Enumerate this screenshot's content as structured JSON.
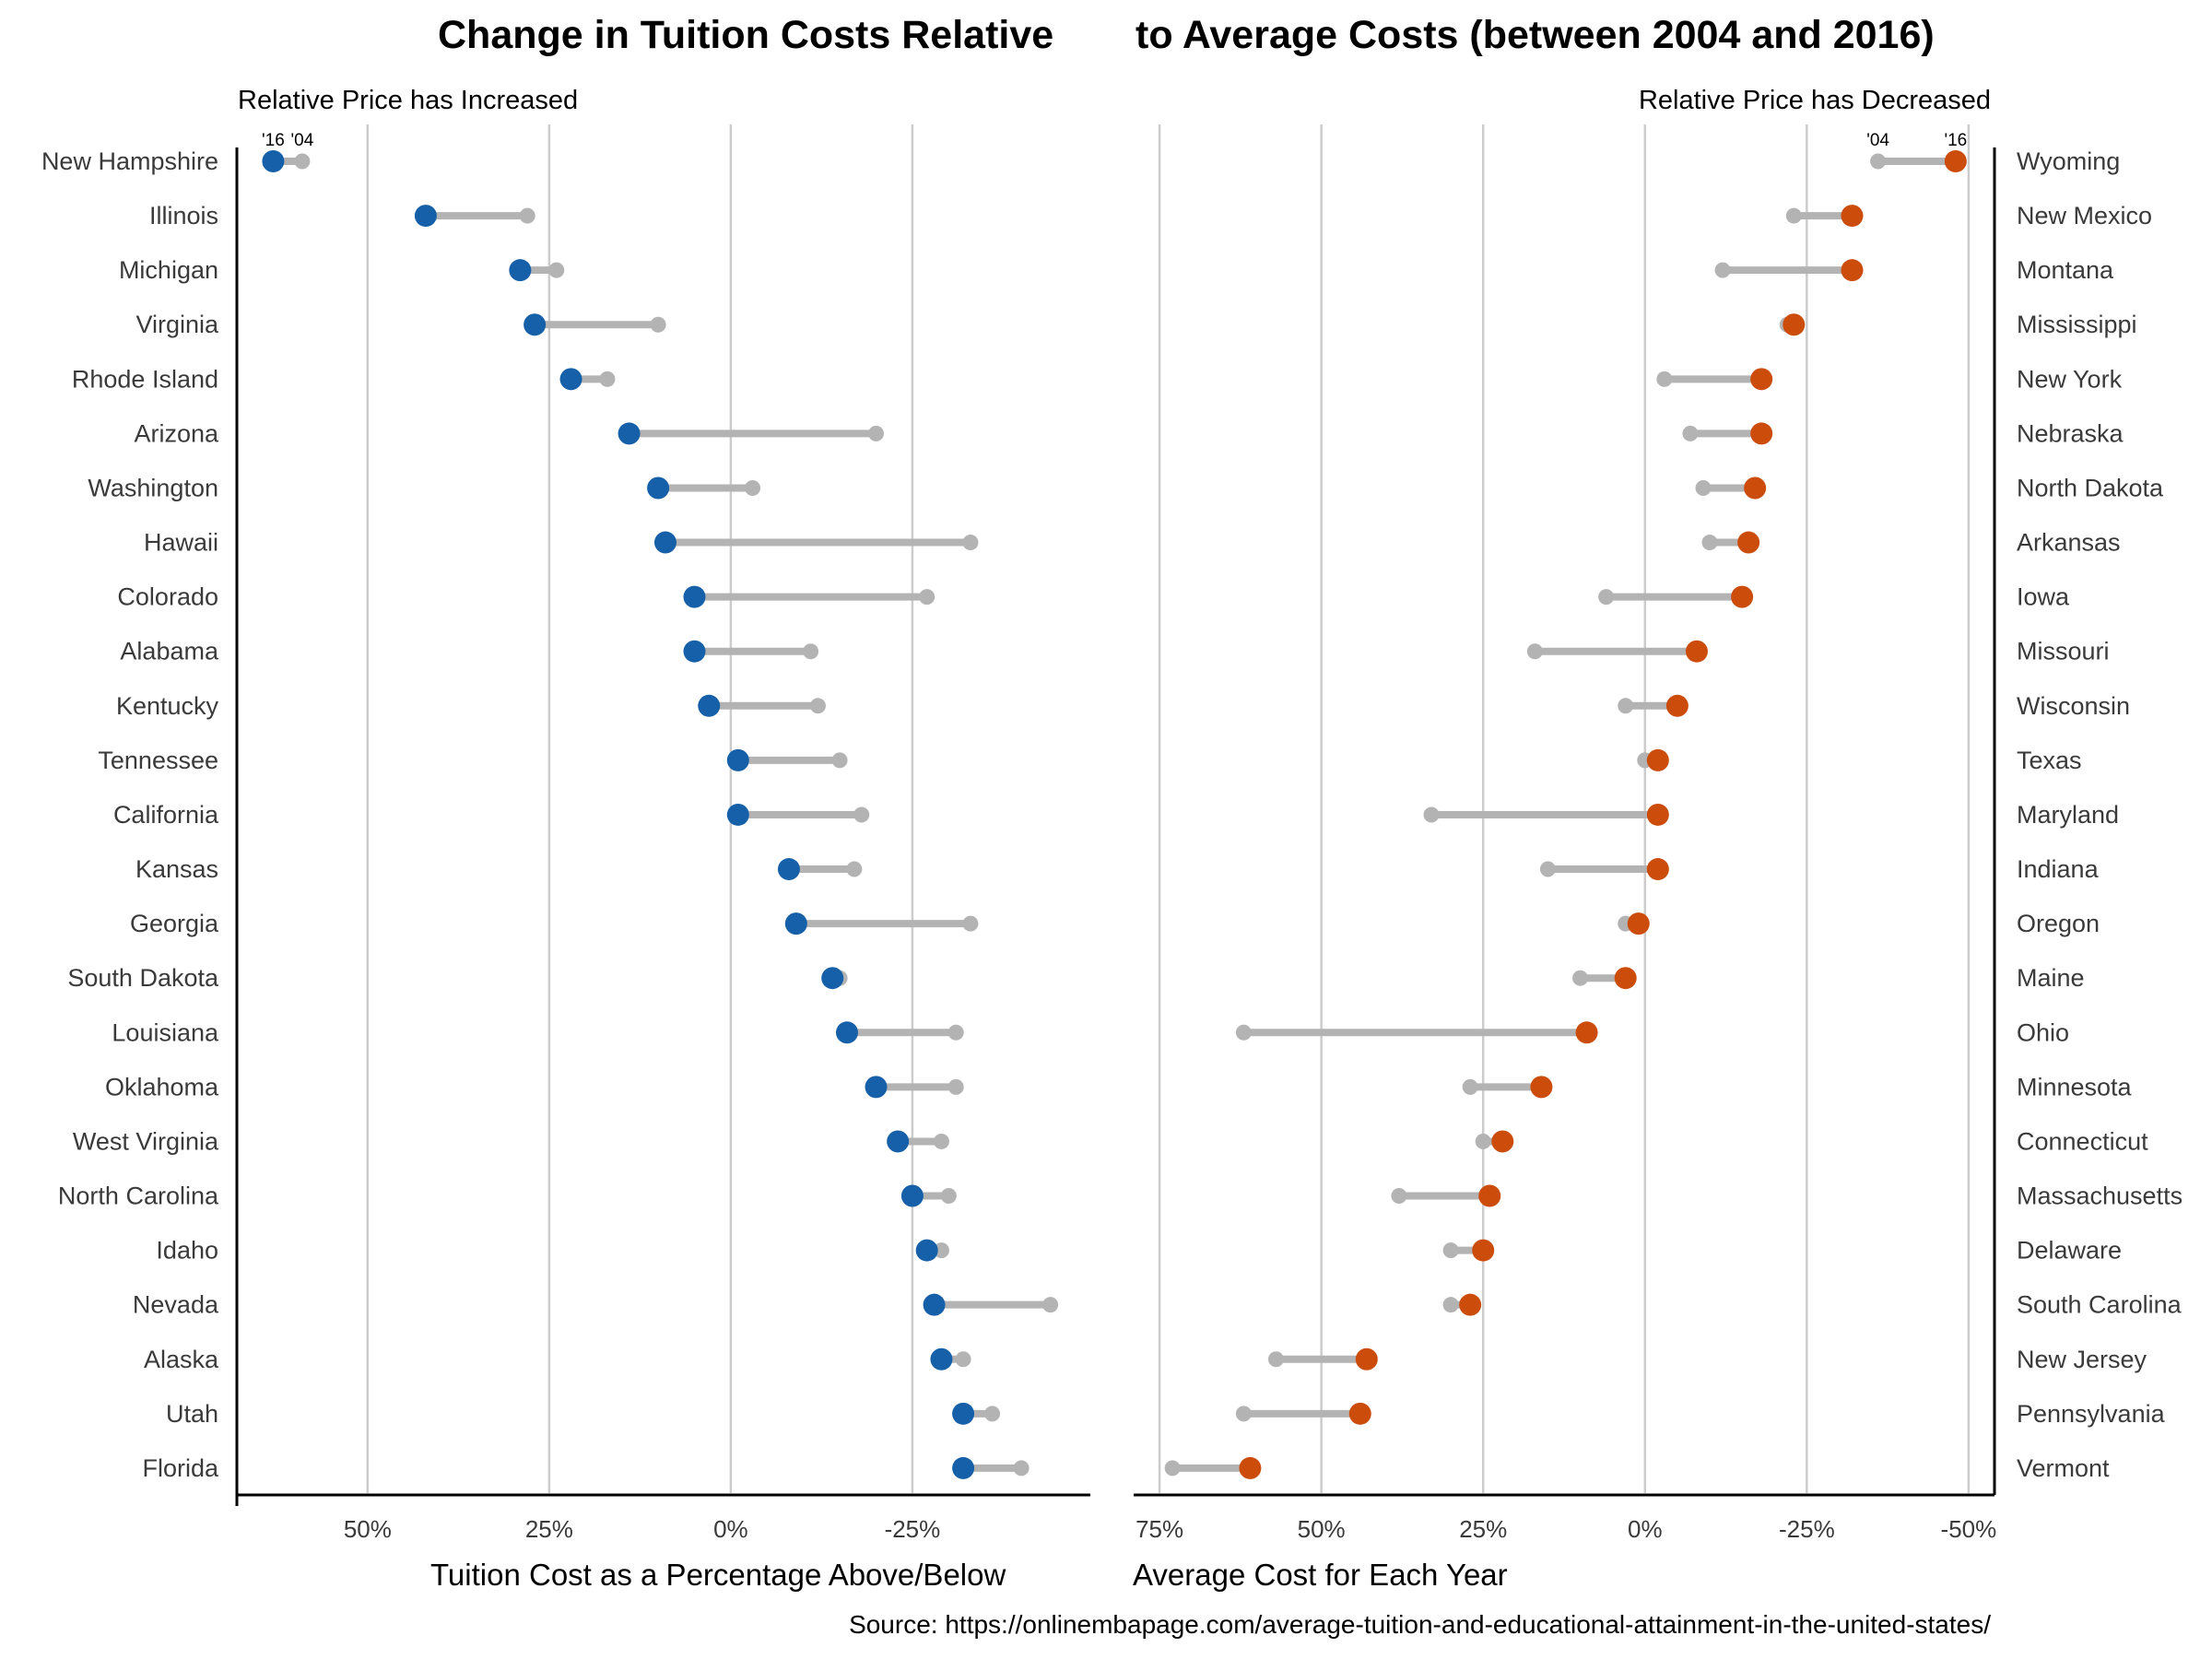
{
  "title_part1": "Change in Tuition Costs Relative",
  "title_part2": "to Average Costs (between 2004 and 2016)",
  "source": "Source: https://onlinembapage.com/average-tuition-and-educational-attainment-in-the-united-states/",
  "colors": {
    "increased": "#1560a8",
    "decreased": "#cc4c0c",
    "start": "#b3b3b3",
    "grid": "#cccccc"
  },
  "chart_data": [
    {
      "type": "dumbbell",
      "subtitle": "Relative Price has Increased",
      "xlabel": "Tuition Cost as a Percentage Above/Below",
      "x_reversed": true,
      "xlim": [
        68,
        -49.5
      ],
      "xticks": [
        50,
        25,
        0,
        -25
      ],
      "tick_labels": [
        "50%",
        "25%",
        "0%",
        "-25%"
      ],
      "label_2004": "'04",
      "label_2016": "'16",
      "categories": [
        "New Hampshire",
        "Illinois",
        "Michigan",
        "Virginia",
        "Rhode Island",
        "Arizona",
        "Washington",
        "Hawaii",
        "Colorado",
        "Alabama",
        "Kentucky",
        "Tennessee",
        "California",
        "Kansas",
        "Georgia",
        "South Dakota",
        "Louisiana",
        "Oklahoma",
        "West Virginia",
        "North Carolina",
        "Idaho",
        "Nevada",
        "Alaska",
        "Utah",
        "Florida"
      ],
      "series": [
        {
          "name": "'04",
          "values": [
            59,
            28,
            24,
            10,
            17,
            -20,
            -3,
            -33,
            -27,
            -11,
            -12,
            -15,
            -18,
            -17,
            -33,
            -15,
            -31,
            -31,
            -29,
            -30,
            -29,
            -44,
            -32,
            -36,
            -40
          ]
        },
        {
          "name": "'16",
          "values": [
            63,
            42,
            29,
            27,
            22,
            14,
            10,
            9,
            5,
            5,
            3,
            -1,
            -1,
            -8,
            -9,
            -14,
            -16,
            -20,
            -23,
            -25,
            -27,
            -28,
            -29,
            -32,
            -32
          ]
        }
      ]
    },
    {
      "type": "dumbbell",
      "subtitle": "Relative Price has Decreased",
      "xlabel": "Average Cost for Each Year",
      "x_reversed": true,
      "xlim": [
        79,
        -54
      ],
      "xticks": [
        75,
        50,
        25,
        0,
        -25,
        -50
      ],
      "tick_labels": [
        "75%",
        "50%",
        "25%",
        "0%",
        "-25%",
        "-50%"
      ],
      "label_2004": "'04",
      "label_2016": "'16",
      "categories": [
        "Wyoming",
        "New Mexico",
        "Montana",
        "Mississippi",
        "New York",
        "Nebraska",
        "North Dakota",
        "Arkansas",
        "Iowa",
        "Missouri",
        "Wisconsin",
        "Texas",
        "Maryland",
        "Indiana",
        "Oregon",
        "Maine",
        "Ohio",
        "Minnesota",
        "Connecticut",
        "Massachusetts",
        "Delaware",
        "South Carolina",
        "New Jersey",
        "Pennsylvania",
        "Vermont"
      ],
      "series": [
        {
          "name": "'04",
          "values": [
            -36,
            -23,
            -12,
            -22,
            -3,
            -7,
            -9,
            -10,
            6,
            17,
            3,
            0,
            33,
            15,
            3,
            10,
            62,
            27,
            25,
            38,
            30,
            30,
            57,
            62,
            73
          ]
        },
        {
          "name": "'16",
          "values": [
            -48,
            -32,
            -32,
            -23,
            -18,
            -18,
            -17,
            -16,
            -15,
            -8,
            -5,
            -2,
            -2,
            -2,
            1,
            3,
            9,
            16,
            22,
            24,
            25,
            27,
            43,
            44,
            61
          ]
        }
      ]
    }
  ]
}
